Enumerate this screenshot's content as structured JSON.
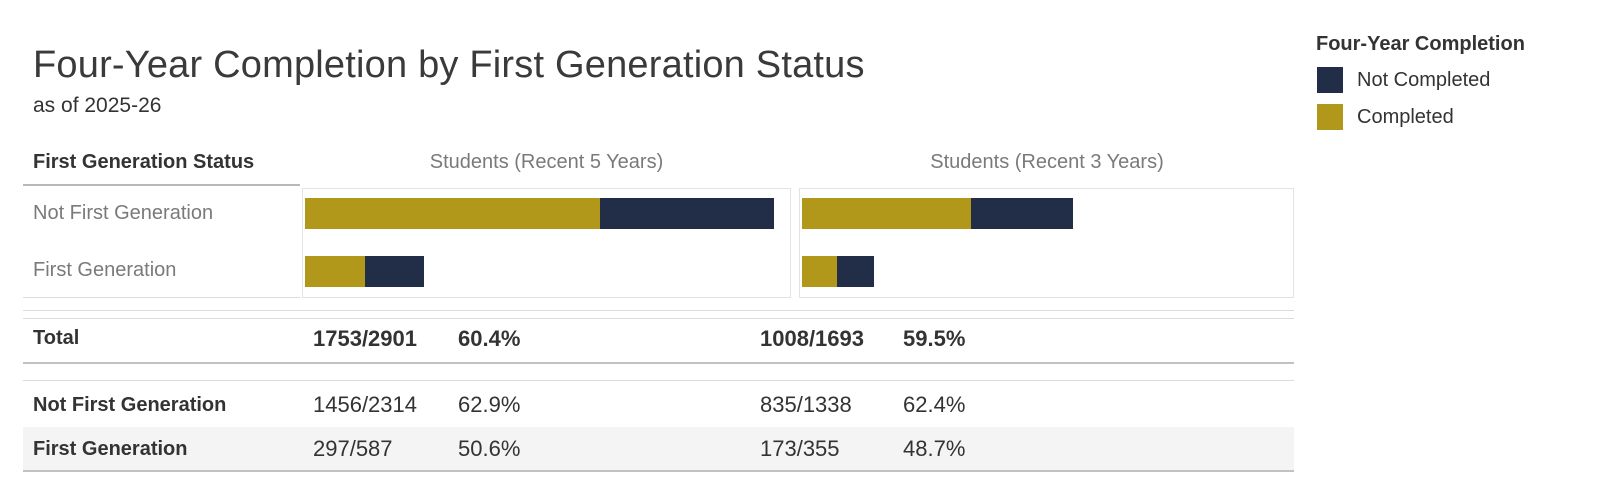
{
  "title": "Four-Year Completion by First Generation Status",
  "subtitle": "as of 2025-26",
  "colors": {
    "completed": "#b1981b",
    "not_completed": "#222e48",
    "text_dark": "#333333",
    "text_gray": "#7a7a7a",
    "row_alt_background": "#f4f4f4"
  },
  "legend": {
    "title": "Four-Year Completion",
    "entries": [
      {
        "label": "Not Completed",
        "color": "#222e48"
      },
      {
        "label": "Completed",
        "color": "#b1981b"
      }
    ]
  },
  "table": {
    "row_header": "First Generation Status",
    "col_headers": [
      "Students (Recent 5 Years)",
      "Students (Recent 3 Years)"
    ],
    "chart_rows": [
      "Not First Generation",
      "First Generation"
    ],
    "total_row": {
      "label": "Total",
      "cells": [
        {
          "fraction": "1753/2901",
          "pct": "60.4%"
        },
        {
          "fraction": "1008/1693",
          "pct": "59.5%"
        }
      ]
    },
    "detail_rows": [
      {
        "label": "Not First Generation",
        "cells": [
          {
            "fraction": "1456/2314",
            "pct": "62.9%"
          },
          {
            "fraction": "835/1338",
            "pct": "62.4%"
          }
        ]
      },
      {
        "label": "First Generation",
        "cells": [
          {
            "fraction": "297/587",
            "pct": "50.6%"
          },
          {
            "fraction": "173/355",
            "pct": "48.7%"
          }
        ]
      }
    ]
  },
  "chart_data": {
    "type": "bar",
    "subtype": "horizontal-stacked",
    "title": "Four-Year Completion by First Generation Status",
    "subtitle": "as of 2025-26",
    "legend_title": "Four-Year Completion",
    "legend_entries": [
      "Not Completed",
      "Completed"
    ],
    "legend_position": "top-right",
    "categories": [
      "Not First Generation",
      "First Generation"
    ],
    "bar_colors": {
      "Completed": "#b1981b",
      "Not Completed": "#222e48"
    },
    "note": "bar length proportional to student count; gold = completed, navy = not completed",
    "panels": [
      {
        "header": "Students (Recent 5 Years)",
        "series": [
          {
            "category": "Not First Generation",
            "completed": 1456,
            "not_completed": 858,
            "total": 2314,
            "pct_completed": 62.9
          },
          {
            "category": "First Generation",
            "completed": 297,
            "not_completed": 290,
            "total": 587,
            "pct_completed": 50.6
          }
        ],
        "total": {
          "completed": 1753,
          "total": 2901,
          "pct_completed": 60.4
        }
      },
      {
        "header": "Students (Recent 3 Years)",
        "series": [
          {
            "category": "Not First Generation",
            "completed": 835,
            "not_completed": 503,
            "total": 1338,
            "pct_completed": 62.4
          },
          {
            "category": "First Generation",
            "completed": 173,
            "not_completed": 182,
            "total": 355,
            "pct_completed": 48.7
          }
        ],
        "total": {
          "completed": 1008,
          "total": 1693,
          "pct_completed": 59.5
        }
      }
    ]
  }
}
